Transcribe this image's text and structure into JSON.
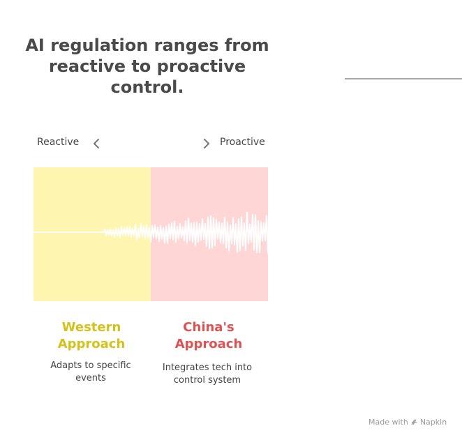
{
  "title": "AI regulation ranges from reactive to proactive control.",
  "scale": {
    "left_label": "Reactive",
    "right_label": "Proactive"
  },
  "sections": [
    {
      "heading_line1": "Western",
      "heading_line2": "Approach",
      "description": "Adapts to specific events",
      "color": "#d4c21a",
      "fill": "#fef6b0"
    },
    {
      "heading_line1": "China's",
      "heading_line2": "Approach",
      "description": "Integrates tech into control system",
      "color": "#e05252",
      "fill": "#ffd6d6"
    }
  ],
  "credit": {
    "made_with": "Made with",
    "brand": "Napkin"
  }
}
